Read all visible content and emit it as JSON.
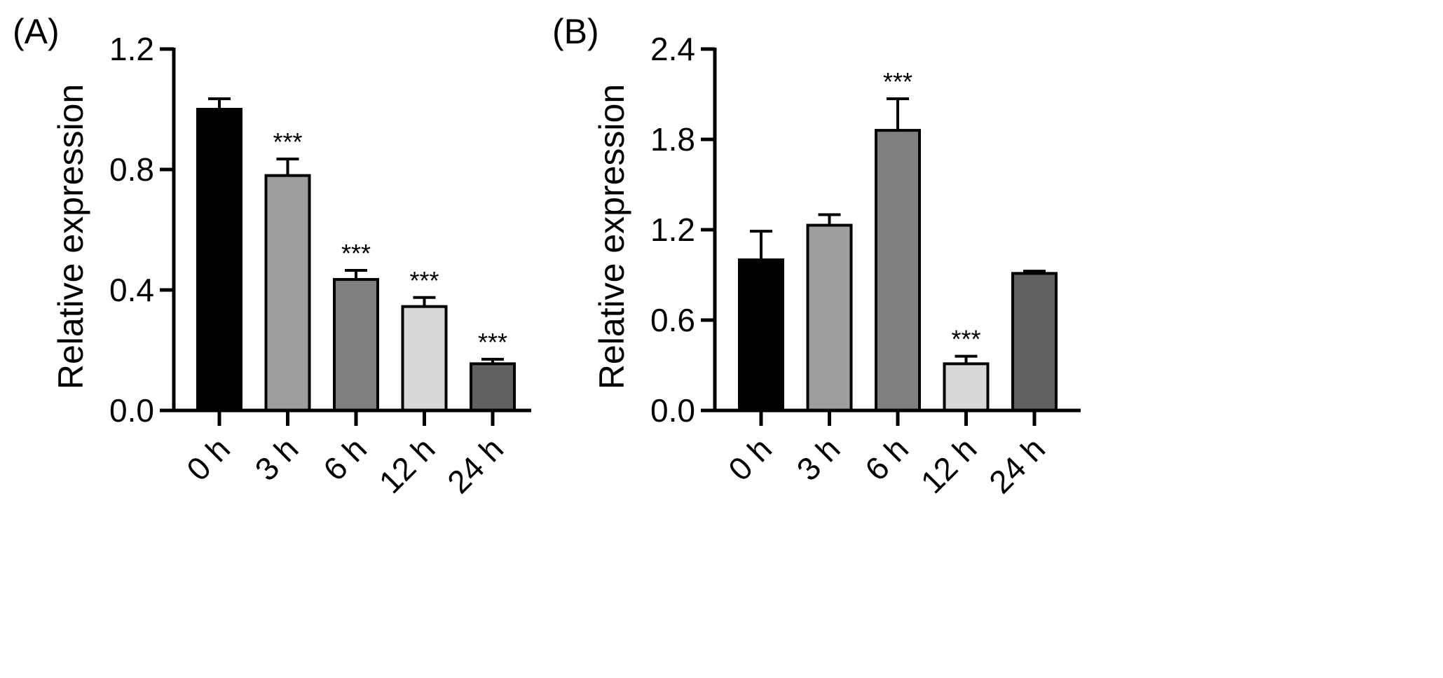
{
  "chart_data": [
    {
      "panel": "(A)",
      "type": "bar",
      "categories": [
        "0 h",
        "3 h",
        "6 h",
        "12 h",
        "24 h"
      ],
      "values": [
        1.0,
        0.78,
        0.435,
        0.345,
        0.155
      ],
      "errors": [
        0.035,
        0.055,
        0.03,
        0.03,
        0.015
      ],
      "significance": [
        "",
        "***",
        "***",
        "***",
        "***"
      ],
      "bar_colors": [
        "#000000",
        "#9e9ea1",
        "#7f7f7f",
        "#d8d8d8",
        "#606060"
      ],
      "ylabel": "Relative expression",
      "ylim": [
        0,
        1.2
      ],
      "yticks": [
        0.0,
        0.4,
        0.8,
        1.2
      ],
      "ytick_labels": [
        "0.0",
        "0.4",
        "0.8",
        "1.2"
      ]
    },
    {
      "panel": "(B)",
      "type": "bar",
      "categories": [
        "0 h",
        "3 h",
        "6 h",
        "12 h",
        "24 h"
      ],
      "values": [
        1.0,
        1.23,
        1.86,
        0.31,
        0.91
      ],
      "errors": [
        0.19,
        0.07,
        0.21,
        0.05,
        0.015
      ],
      "significance": [
        "",
        "",
        "***",
        "***",
        ""
      ],
      "bar_colors": [
        "#000000",
        "#9e9ea1",
        "#7f7f7f",
        "#d8d8d8",
        "#606060"
      ],
      "ylabel": "Relative expression",
      "ylim": [
        0,
        2.4
      ],
      "yticks": [
        0.0,
        0.6,
        1.2,
        1.8,
        2.4
      ],
      "ytick_labels": [
        "0.0",
        "0.6",
        "1.2",
        "1.8",
        "2.4"
      ]
    }
  ]
}
